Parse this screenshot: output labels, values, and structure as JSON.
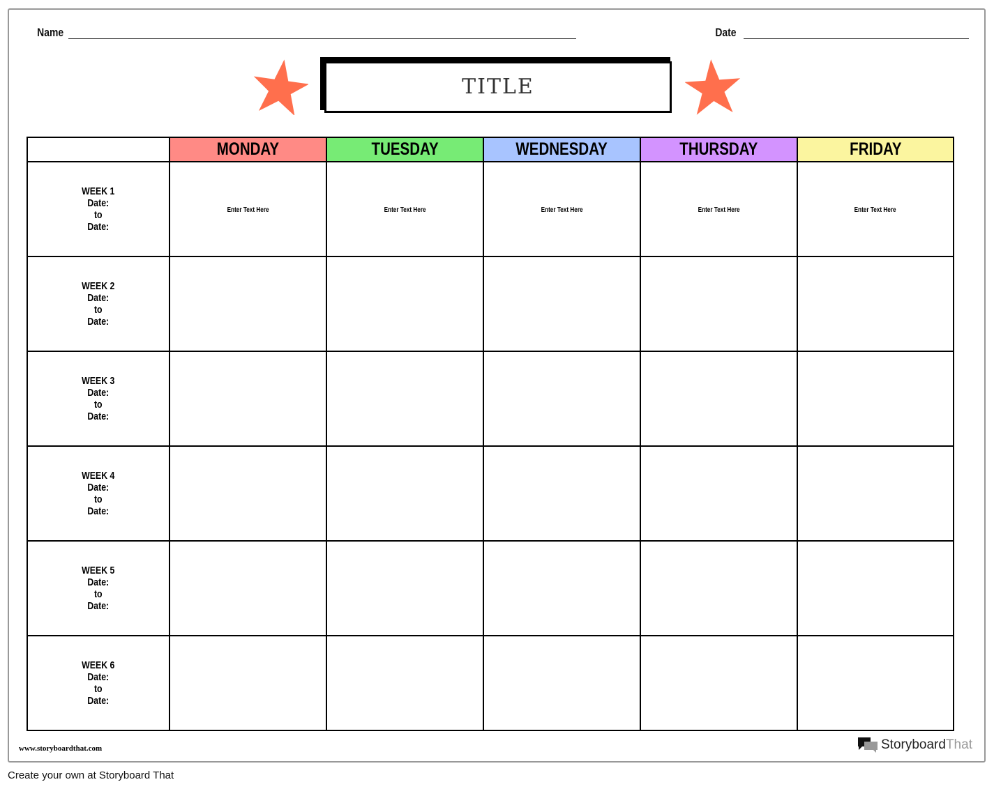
{
  "header": {
    "name_label": "Name",
    "date_label": "Date",
    "title": "TITLE"
  },
  "colors": {
    "star": "#ff6f4d",
    "monday": "#ff8a85",
    "tuesday": "#77eb75",
    "wednesday": "#a8c4ff",
    "thursday": "#d393ff",
    "friday": "#fbf59f"
  },
  "days": [
    "MONDAY",
    "TUESDAY",
    "WEDNESDAY",
    "THURSDAY",
    "FRIDAY"
  ],
  "weeks": [
    {
      "label": "WEEK 1",
      "date1": "Date:",
      "to": "to",
      "date2": "Date:",
      "cells": [
        "Enter Text Here",
        "Enter Text Here",
        "Enter Text Here",
        "Enter Text Here",
        "Enter Text Here"
      ]
    },
    {
      "label": "WEEK 2",
      "date1": "Date:",
      "to": "to",
      "date2": "Date:",
      "cells": [
        "",
        "",
        "",
        "",
        ""
      ]
    },
    {
      "label": "WEEK 3",
      "date1": "Date:",
      "to": "to",
      "date2": "Date:",
      "cells": [
        "",
        "",
        "",
        "",
        ""
      ]
    },
    {
      "label": "WEEK 4",
      "date1": "Date:",
      "to": "to",
      "date2": "Date:",
      "cells": [
        "",
        "",
        "",
        "",
        ""
      ]
    },
    {
      "label": "WEEK 5",
      "date1": "Date:",
      "to": "to",
      "date2": "Date:",
      "cells": [
        "",
        "",
        "",
        "",
        ""
      ]
    },
    {
      "label": "WEEK 6",
      "date1": "Date:",
      "to": "to",
      "date2": "Date:",
      "cells": [
        "",
        "",
        "",
        "",
        ""
      ]
    }
  ],
  "footer": {
    "url": "www.storyboardthat.com",
    "logo_a": "Storyboard",
    "logo_b": "That",
    "create": "Create your own at Storyboard That"
  }
}
